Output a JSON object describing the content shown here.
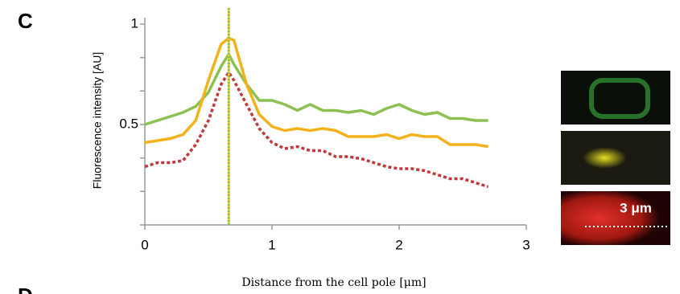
{
  "panels": {
    "current": "C",
    "next": "D"
  },
  "chart_data": {
    "type": "line",
    "ylabel": "Fluorescence intensity [AU]",
    "xlabel": "Distance from the cell pole [μm]",
    "x": [
      0,
      0.1,
      0.2,
      0.3,
      0.4,
      0.5,
      0.6,
      0.66,
      0.7,
      0.8,
      0.9,
      1.0,
      1.1,
      1.2,
      1.3,
      1.4,
      1.5,
      1.6,
      1.7,
      1.8,
      1.9,
      2.0,
      2.1,
      2.2,
      2.3,
      2.4,
      2.5,
      2.6,
      2.7
    ],
    "series": [
      {
        "color": "#8cc152",
        "linestyle": "solid",
        "values": [
          0.5,
          0.52,
          0.54,
          0.56,
          0.59,
          0.66,
          0.79,
          0.85,
          0.8,
          0.7,
          0.62,
          0.62,
          0.6,
          0.57,
          0.6,
          0.57,
          0.57,
          0.56,
          0.57,
          0.55,
          0.58,
          0.6,
          0.57,
          0.55,
          0.56,
          0.53,
          0.53,
          0.52,
          0.52
        ]
      },
      {
        "color": "#f2b21c",
        "linestyle": "solid",
        "values": [
          0.41,
          0.42,
          0.43,
          0.45,
          0.52,
          0.72,
          0.9,
          0.93,
          0.92,
          0.7,
          0.55,
          0.49,
          0.47,
          0.48,
          0.47,
          0.48,
          0.47,
          0.44,
          0.44,
          0.44,
          0.45,
          0.43,
          0.45,
          0.44,
          0.44,
          0.4,
          0.4,
          0.4,
          0.39
        ]
      },
      {
        "color": "#c0393b",
        "linestyle": "dotted",
        "values": [
          0.29,
          0.31,
          0.31,
          0.32,
          0.4,
          0.52,
          0.7,
          0.76,
          0.72,
          0.6,
          0.48,
          0.41,
          0.38,
          0.39,
          0.37,
          0.37,
          0.34,
          0.34,
          0.33,
          0.31,
          0.29,
          0.28,
          0.28,
          0.27,
          0.25,
          0.23,
          0.23,
          0.21,
          0.19
        ]
      }
    ],
    "marker_x": 0.66,
    "xlim": [
      0,
      3
    ],
    "xticks": [
      0,
      1,
      2,
      3
    ],
    "ylim": [
      0,
      1
    ],
    "yticks": [
      0.5,
      1
    ],
    "yminorticks": [
      0,
      0.167,
      0.333,
      0.667,
      0.833
    ]
  },
  "images": {
    "scale_bar_label": "3 μm"
  }
}
